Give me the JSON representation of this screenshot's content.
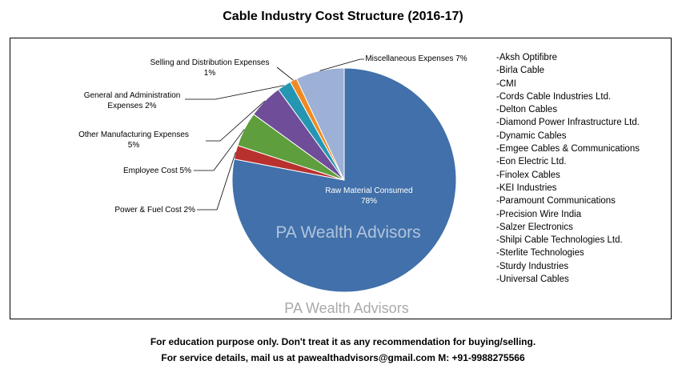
{
  "chart_data": {
    "type": "pie",
    "title": "Cable Industry Cost Structure (2016-17)",
    "slices": [
      {
        "label": "Raw Material Consumed",
        "value": 78,
        "value_label": "78%",
        "color": "#4170aa"
      },
      {
        "label": "Power & Fuel Cost",
        "value": 2,
        "value_label": "2%",
        "color": "#b8312f"
      },
      {
        "label": "Employee Cost",
        "value": 5,
        "value_label": "5%",
        "color": "#5e9e3c"
      },
      {
        "label": "Other Manufacturing Expenses",
        "value": 5,
        "value_label": "5%",
        "color": "#6f4d98"
      },
      {
        "label": "General and Administration Expenses",
        "value": 2,
        "value_label": "2%",
        "color": "#2596b1"
      },
      {
        "label": "Selling and Distribution Expenses",
        "value": 1,
        "value_label": "1%",
        "color": "#ef8a23"
      },
      {
        "label": "Miscellaneous Expenses",
        "value": 7,
        "value_label": "7%",
        "color": "#9db0d6"
      }
    ],
    "slice_label_texts": [
      [
        "Raw Material Consumed",
        "78%"
      ],
      [
        "Power & Fuel Cost 2%"
      ],
      [
        "Employee Cost 5%"
      ],
      [
        "Other Manufacturing Expenses",
        "5%"
      ],
      [
        "General and Administration",
        "Expenses 2%"
      ],
      [
        "Selling and Distribution Expenses",
        "1%"
      ],
      [
        "Miscellaneous Expenses 7%"
      ]
    ],
    "legend_position": "right",
    "legend": [
      "-Aksh Optifibre",
      "-Birla Cable",
      "-CMI",
      "-Cords Cable Industries Ltd.",
      "-Delton Cables",
      "-Diamond Power Infrastructure Ltd.",
      "-Dynamic Cables",
      "-Emgee Cables & Communications",
      "-Eon Electric Ltd.",
      "-Finolex Cables",
      "-KEI Industries",
      "-Paramount Communications",
      "-Precision Wire India",
      "-Salzer Electronics",
      "-Shilpi Cable Technologies Ltd.",
      "-Sterlite Technologies",
      "-Sturdy Industries",
      "-Universal Cables"
    ]
  },
  "watermarks": {
    "inside": "PA Wealth Advisors",
    "bottom": "PA Wealth Advisors"
  },
  "footer": {
    "line1": "For education purpose only. Don't treat it as any recommendation for buying/selling.",
    "line2": "For service details, mail us at pawealthadvisors@gmail.com M: +91-9988275566"
  }
}
